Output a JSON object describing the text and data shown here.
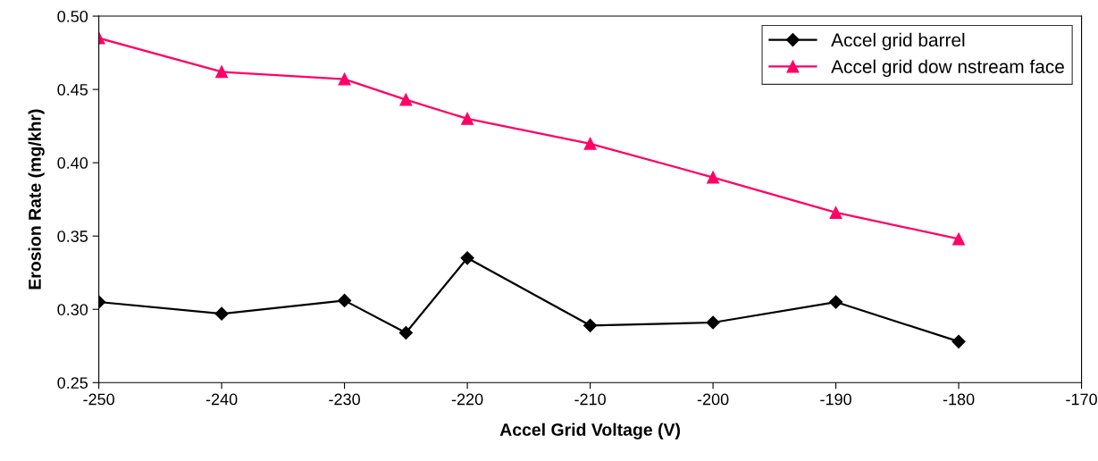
{
  "chart_data": {
    "type": "line",
    "xlabel": "Accel Grid Voltage (V)",
    "ylabel": "Erosion Rate (mg/khr)",
    "x": [
      -250,
      -240,
      -230,
      -225,
      -220,
      -210,
      -200,
      -190,
      -180
    ],
    "series": [
      {
        "name": "Accel grid barrel",
        "color": "#000000",
        "marker": "diamond",
        "values": [
          0.305,
          0.297,
          0.306,
          0.284,
          0.335,
          0.289,
          0.291,
          0.305,
          0.278
        ]
      },
      {
        "name": "Accel grid dow nstream face",
        "color": "#ff0066",
        "marker": "triangle",
        "values": [
          0.485,
          0.462,
          0.457,
          0.443,
          0.43,
          0.413,
          0.39,
          0.366,
          0.348
        ]
      }
    ],
    "xlim": [
      -250,
      -170
    ],
    "xticks": [
      -250,
      -240,
      -230,
      -220,
      -210,
      -200,
      -190,
      -180,
      -170
    ],
    "ylim": [
      0.25,
      0.5
    ],
    "yticks": [
      {
        "value": 0.25,
        "label": "0.25"
      },
      {
        "value": 0.3,
        "label": "0.30"
      },
      {
        "value": 0.35,
        "label": "0.35"
      },
      {
        "value": 0.4,
        "label": "0.40"
      },
      {
        "value": 0.45,
        "label": "0.45"
      },
      {
        "value": 0.5,
        "label": "0.50"
      }
    ],
    "grid": false,
    "legend": "top right",
    "line_style": "solid"
  }
}
